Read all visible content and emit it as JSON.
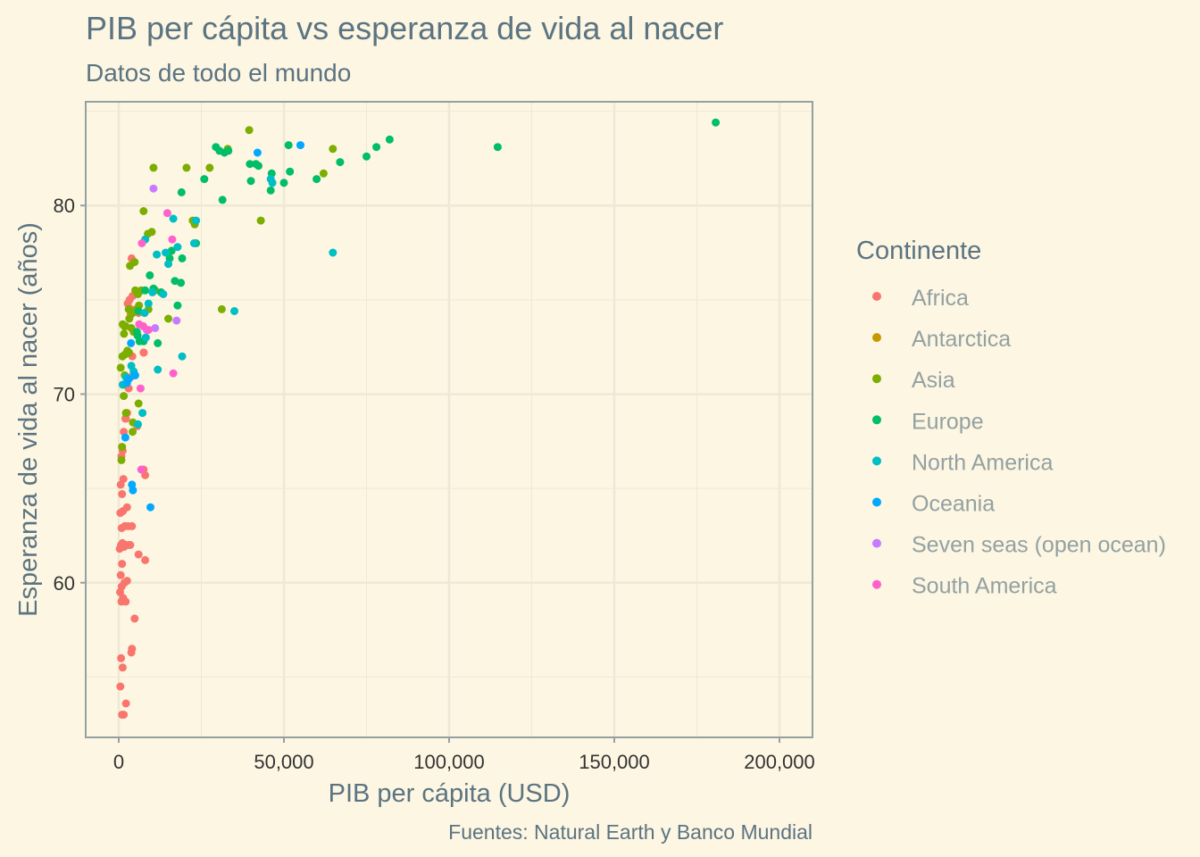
{
  "chart_data": {
    "type": "scatter",
    "title": "PIB per cápita vs esperanza de vida al nacer",
    "subtitle": "Datos de todo el mundo",
    "xlabel": "PIB per cápita (USD)",
    "ylabel": "Esperanza de vida al nacer (años)",
    "caption": "Fuentes: Natural Earth y Banco Mundial",
    "xlim": [
      -10000,
      210000
    ],
    "ylim": [
      51.8,
      85.5
    ],
    "x_ticks": [
      0,
      50000,
      100000,
      150000,
      200000
    ],
    "x_tick_labels": [
      "0",
      "50,000",
      "100,000",
      "150,000",
      "200,000"
    ],
    "y_ticks": [
      60,
      70,
      80
    ],
    "y_tick_labels": [
      "60",
      "70",
      "80"
    ],
    "grid": true,
    "legend": {
      "title": "Continente",
      "position": "right",
      "entries": [
        {
          "name": "Africa",
          "color": "#f8766d"
        },
        {
          "name": "Antarctica",
          "color": "#c49a00"
        },
        {
          "name": "Asia",
          "color": "#7cae00"
        },
        {
          "name": "Europe",
          "color": "#00be67"
        },
        {
          "name": "North America",
          "color": "#00bfc4"
        },
        {
          "name": "Oceania",
          "color": "#00a9ff"
        },
        {
          "name": "Seven seas (open ocean)",
          "color": "#c77cff"
        },
        {
          "name": "South America",
          "color": "#ff61cc"
        }
      ]
    },
    "series": [
      {
        "name": "Africa",
        "color": "#f8766d",
        "points": [
          [
            1000,
            53
          ],
          [
            1500,
            53
          ],
          [
            2200,
            53.6
          ],
          [
            500,
            54.5
          ],
          [
            1200,
            55.5
          ],
          [
            700,
            56
          ],
          [
            3800,
            56.3
          ],
          [
            4000,
            56.5
          ],
          [
            4800,
            58.1
          ],
          [
            800,
            59
          ],
          [
            1300,
            59.2
          ],
          [
            2100,
            59
          ],
          [
            400,
            59.5
          ],
          [
            900,
            59.8
          ],
          [
            1700,
            60
          ],
          [
            600,
            60.4
          ],
          [
            2500,
            60.1
          ],
          [
            1000,
            61
          ],
          [
            6000,
            61.5
          ],
          [
            8000,
            61.2
          ],
          [
            300,
            61.8
          ],
          [
            700,
            62
          ],
          [
            1100,
            62.1
          ],
          [
            1600,
            61.9
          ],
          [
            2200,
            62
          ],
          [
            3000,
            62
          ],
          [
            3500,
            62
          ],
          [
            900,
            62.9
          ],
          [
            1800,
            63
          ],
          [
            2800,
            63
          ],
          [
            4000,
            63
          ],
          [
            500,
            63.7
          ],
          [
            1300,
            63.8
          ],
          [
            2500,
            64
          ],
          [
            1000,
            64.7
          ],
          [
            600,
            65.2
          ],
          [
            1400,
            65.5
          ],
          [
            800,
            66.7
          ],
          [
            1200,
            67
          ],
          [
            1500,
            68
          ],
          [
            2000,
            68.7
          ],
          [
            2500,
            69
          ],
          [
            3000,
            70.3
          ],
          [
            3600,
            70.9
          ],
          [
            4100,
            72
          ],
          [
            7500,
            72.2
          ],
          [
            7600,
            72.2
          ],
          [
            3600,
            74.2
          ],
          [
            2700,
            74.8
          ],
          [
            3300,
            75
          ],
          [
            3700,
            74.5
          ],
          [
            4200,
            75.2
          ],
          [
            6000,
            74.3
          ],
          [
            3900,
            77.2
          ],
          [
            8000,
            65.7
          ],
          [
            7500,
            66
          ],
          [
            2200,
            68.7
          ],
          [
            5600,
            68.3
          ]
        ]
      },
      {
        "name": "Asia",
        "color": "#7cae00",
        "points": [
          [
            800,
            66.5
          ],
          [
            1000,
            67.2
          ],
          [
            1500,
            69.9
          ],
          [
            2200,
            69
          ],
          [
            1400,
            70.5
          ],
          [
            1800,
            71
          ],
          [
            600,
            71.4
          ],
          [
            1100,
            72
          ],
          [
            1900,
            72.1
          ],
          [
            2600,
            72.3
          ],
          [
            1600,
            73.2
          ],
          [
            2100,
            73.6
          ],
          [
            1200,
            73.7
          ],
          [
            3200,
            74
          ],
          [
            3800,
            73.5
          ],
          [
            4500,
            73.3
          ],
          [
            5400,
            74.5
          ],
          [
            6100,
            74.7
          ],
          [
            3000,
            74.5
          ],
          [
            4200,
            74.3
          ],
          [
            6800,
            75.5
          ],
          [
            5000,
            75.5
          ],
          [
            5800,
            75.3
          ],
          [
            3400,
            76.8
          ],
          [
            4800,
            77
          ],
          [
            7500,
            79.7
          ],
          [
            10000,
            78.6
          ],
          [
            8800,
            78.5
          ],
          [
            10500,
            82
          ],
          [
            20500,
            82
          ],
          [
            39500,
            84
          ],
          [
            64800,
            83
          ],
          [
            62000,
            81.7
          ],
          [
            33000,
            83
          ],
          [
            22400,
            79.2
          ],
          [
            23000,
            79
          ],
          [
            27500,
            82
          ],
          [
            43000,
            79.2
          ],
          [
            31200,
            74.5
          ],
          [
            15000,
            74
          ],
          [
            11000,
            75.5
          ],
          [
            9000,
            74.5
          ],
          [
            6000,
            69.5
          ],
          [
            4300,
            68.5
          ],
          [
            4200,
            68
          ],
          [
            3100,
            72.2
          ],
          [
            1700,
            73.6
          ]
        ]
      },
      {
        "name": "Europe",
        "color": "#00be67",
        "points": [
          [
            5500,
            73.3
          ],
          [
            6000,
            74.4
          ],
          [
            7500,
            72.8
          ],
          [
            8000,
            75.5
          ],
          [
            9400,
            76.3
          ],
          [
            10500,
            75.6
          ],
          [
            11800,
            72.7
          ],
          [
            12800,
            75.4
          ],
          [
            15400,
            77.2
          ],
          [
            16000,
            77.6
          ],
          [
            17000,
            76
          ],
          [
            17800,
            74.7
          ],
          [
            18800,
            75.9
          ],
          [
            19200,
            77.2
          ],
          [
            19000,
            80.7
          ],
          [
            23400,
            78
          ],
          [
            25900,
            81.4
          ],
          [
            29400,
            83.1
          ],
          [
            30500,
            82.9
          ],
          [
            31400,
            80.3
          ],
          [
            32000,
            82.8
          ],
          [
            33200,
            82.9
          ],
          [
            39700,
            82.2
          ],
          [
            40000,
            81.3
          ],
          [
            41500,
            82.2
          ],
          [
            42300,
            82.1
          ],
          [
            46000,
            80.8
          ],
          [
            46300,
            81.7
          ],
          [
            50000,
            81.2
          ],
          [
            51400,
            83.2
          ],
          [
            51800,
            81.8
          ],
          [
            59900,
            81.4
          ],
          [
            67000,
            82.3
          ],
          [
            75000,
            82.6
          ],
          [
            78000,
            83.1
          ],
          [
            82000,
            83.5
          ],
          [
            114700,
            83.1
          ],
          [
            180700,
            84.4
          ],
          [
            5700,
            73.1
          ],
          [
            6300,
            72.8
          ]
        ]
      },
      {
        "name": "North America",
        "color": "#00bfc4",
        "points": [
          [
            1200,
            70.5
          ],
          [
            2200,
            70.9
          ],
          [
            3800,
            71.5
          ],
          [
            4500,
            71.2
          ],
          [
            5800,
            68.4
          ],
          [
            7200,
            69
          ],
          [
            7800,
            74.3
          ],
          [
            8200,
            73
          ],
          [
            9000,
            74.8
          ],
          [
            10200,
            75.4
          ],
          [
            11500,
            77.4
          ],
          [
            11800,
            71.3
          ],
          [
            13500,
            75.3
          ],
          [
            14200,
            77.5
          ],
          [
            15000,
            76.9
          ],
          [
            16500,
            79.3
          ],
          [
            17800,
            77.8
          ],
          [
            19200,
            72
          ],
          [
            22800,
            78
          ],
          [
            23400,
            79.2
          ],
          [
            35000,
            74.4
          ],
          [
            46000,
            81.4
          ],
          [
            46500,
            81.2
          ],
          [
            64800,
            77.5
          ],
          [
            8000,
            78.2
          ],
          [
            5000,
            71
          ]
        ]
      },
      {
        "name": "Oceania",
        "color": "#00a9ff",
        "points": [
          [
            2000,
            67.7
          ],
          [
            2500,
            70.6
          ],
          [
            3000,
            70.8
          ],
          [
            3700,
            72.7
          ],
          [
            4000,
            65.2
          ],
          [
            4300,
            64.9
          ],
          [
            4800,
            71
          ],
          [
            9600,
            64
          ],
          [
            42000,
            82.8
          ],
          [
            55000,
            83.2
          ]
        ]
      },
      {
        "name": "Seven seas (open ocean)",
        "color": "#c77cff",
        "points": [
          [
            10500,
            80.9
          ],
          [
            11000,
            73.5
          ],
          [
            17500,
            73.9
          ],
          [
            8500,
            73.4
          ]
        ]
      },
      {
        "name": "South America",
        "color": "#ff61cc",
        "points": [
          [
            6200,
            73.7
          ],
          [
            6600,
            70.3
          ],
          [
            6800,
            66
          ],
          [
            7000,
            78
          ],
          [
            7400,
            73.6
          ],
          [
            9000,
            73.4
          ],
          [
            14700,
            79.6
          ],
          [
            16200,
            78.2
          ],
          [
            16500,
            71.1
          ]
        ]
      }
    ]
  }
}
